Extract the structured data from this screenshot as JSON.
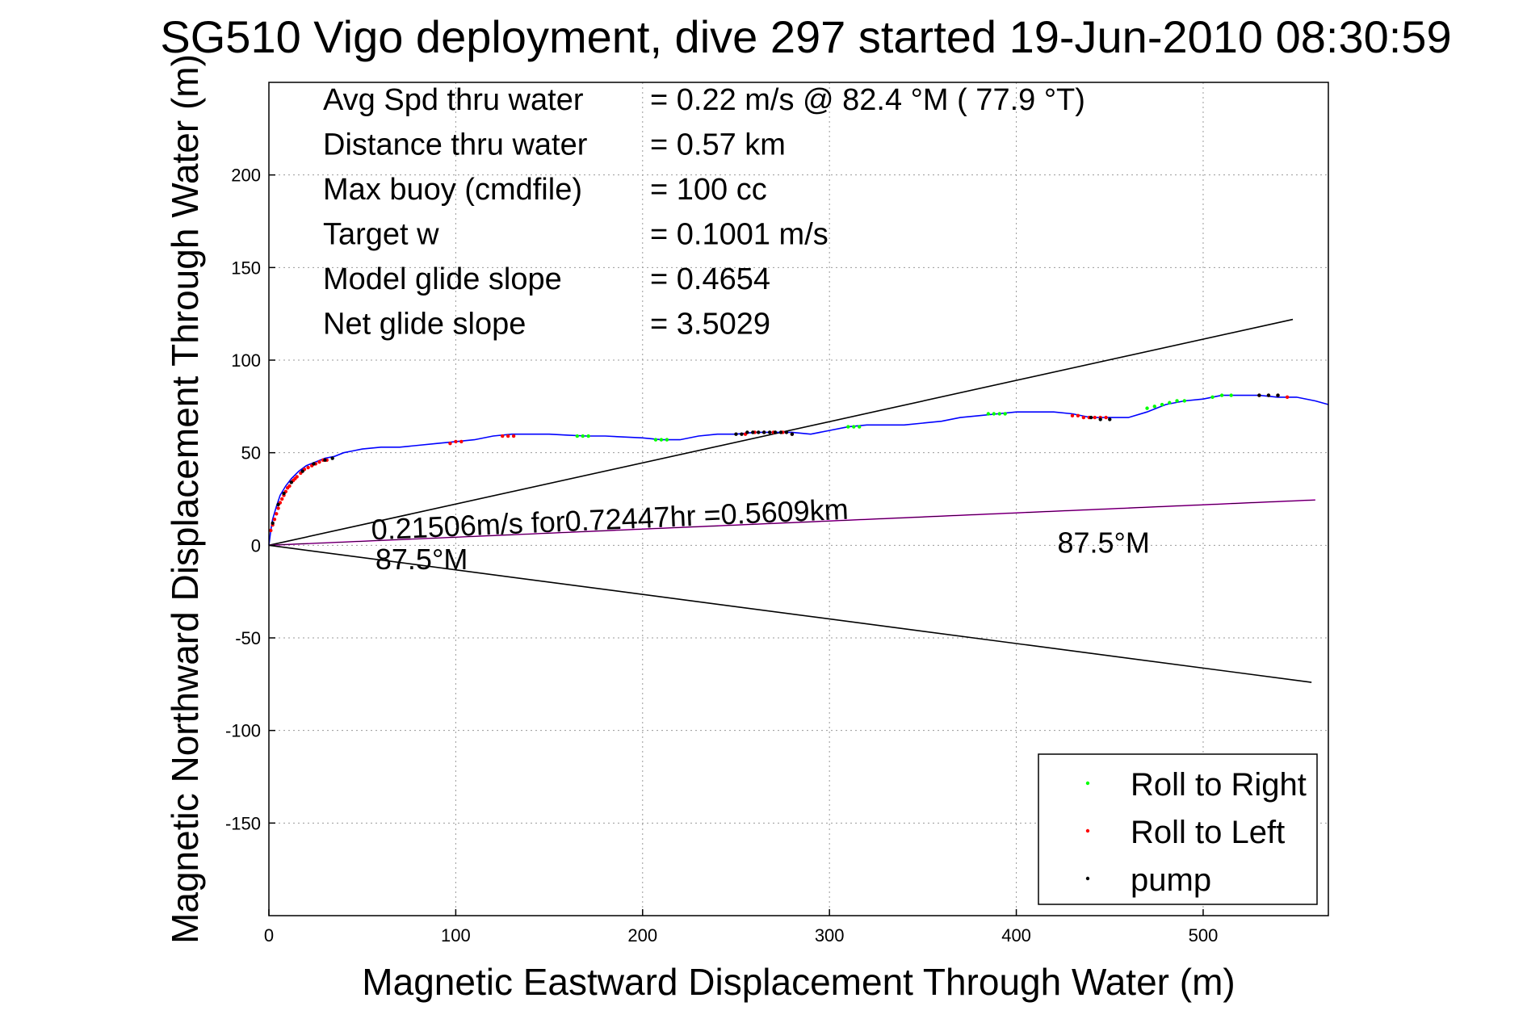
{
  "chart_data": {
    "type": "line",
    "title": "SG510 Vigo deployment, dive 297 started 19-Jun-2010 08:30:59",
    "xlabel": "Magnetic Eastward Displacement Through Water (m)",
    "ylabel": "Magnetic Northward Displacement Through Water (m)",
    "xlim": [
      0,
      567
    ],
    "ylim": [
      -200,
      250
    ],
    "xticks": [
      0,
      100,
      200,
      300,
      400,
      500
    ],
    "yticks": [
      -150,
      -100,
      -50,
      0,
      50,
      100,
      150,
      200
    ],
    "grid": true,
    "legend_position": "bottom-right",
    "info_lines": [
      {
        "label": "Avg Spd thru water",
        "value": "=  0.22 m/s @  82.4 °M ( 77.9 °T)"
      },
      {
        "label": "Distance thru water",
        "value": "=  0.57 km"
      },
      {
        "label": "Max buoy (cmdfile)",
        "value": "= 100 cc"
      },
      {
        "label": "Target w",
        "value": "= 0.1001 m/s"
      },
      {
        "label": "Model glide slope",
        "value": "= 0.4654"
      },
      {
        "label": "Net glide slope",
        "value": "= 3.5029"
      }
    ],
    "annotations": [
      {
        "text": "0.21506m/s for0.72447hr =0.5609km",
        "x": 55,
        "y": 3
      },
      {
        "text": "87.5°M",
        "x": 57,
        "y": -13
      },
      {
        "text": "87.5°M",
        "x": 422,
        "y": -4
      }
    ],
    "series": [
      {
        "name": "track",
        "style": "line",
        "color": "#0000ff",
        "x": [
          0,
          1,
          2,
          4,
          6,
          9,
          12,
          16,
          20,
          25,
          30,
          35,
          40,
          45,
          50,
          55,
          60,
          70,
          80,
          90,
          100,
          110,
          120,
          130,
          140,
          150,
          160,
          170,
          180,
          190,
          200,
          210,
          220,
          230,
          240,
          250,
          260,
          270,
          280,
          290,
          300,
          310,
          320,
          330,
          340,
          350,
          360,
          370,
          380,
          390,
          400,
          410,
          420,
          430,
          440,
          450,
          460,
          470,
          480,
          490,
          500,
          510,
          520,
          530,
          540,
          550,
          560,
          567
        ],
        "y": [
          0,
          8,
          14,
          21,
          27,
          32,
          36,
          40,
          43,
          45,
          47,
          48,
          50,
          51,
          52,
          52.5,
          53,
          53,
          54,
          55,
          56,
          57,
          59,
          60,
          60,
          60,
          59.5,
          59,
          59,
          58.5,
          58,
          57,
          57,
          59,
          60,
          60,
          61,
          61,
          61,
          60,
          62,
          64,
          65,
          65,
          65,
          66,
          67,
          69,
          70,
          71,
          72,
          72,
          72,
          71,
          69,
          69,
          69,
          72,
          76,
          78,
          79,
          81,
          81,
          81,
          80,
          80,
          78,
          76
        ]
      },
      {
        "name": "Roll to Right",
        "style": "points",
        "color": "#00ff00",
        "x": [
          165,
          168,
          171,
          207,
          210,
          213,
          310,
          313,
          316,
          385,
          388,
          391,
          394,
          470,
          474,
          478,
          482,
          486,
          490,
          505,
          510,
          515
        ],
        "y": [
          59,
          59,
          59,
          57,
          57,
          57,
          64,
          64,
          64,
          71,
          71,
          71,
          71,
          74,
          75,
          76,
          77,
          78,
          78,
          80,
          81,
          81
        ]
      },
      {
        "name": "Roll to Left",
        "style": "points",
        "color": "#ff0000",
        "x": [
          1,
          2,
          3,
          4,
          5,
          6,
          7,
          8,
          9,
          10,
          11,
          12,
          13,
          14,
          15,
          17,
          19,
          21,
          23,
          25,
          27,
          29,
          31,
          97,
          100,
          103,
          125,
          128,
          131,
          255,
          260,
          265,
          270,
          275,
          280,
          430,
          433,
          436,
          439,
          442,
          445,
          448,
          530,
          535,
          540,
          545
        ],
        "y": [
          8,
          11,
          14,
          17,
          20,
          23,
          25,
          27,
          29,
          31,
          32,
          34,
          35,
          36,
          37,
          39,
          41,
          42,
          43,
          44,
          45,
          46,
          46,
          55,
          56,
          56,
          59,
          59,
          59,
          60,
          61,
          61,
          61,
          61,
          60,
          70,
          70,
          69,
          69,
          69,
          69,
          69,
          81,
          81,
          81,
          80
        ]
      },
      {
        "name": "pump",
        "style": "points",
        "color": "#000000",
        "x": [
          2,
          5,
          8,
          12,
          18,
          24,
          30,
          34,
          250,
          253,
          256,
          259,
          262,
          265,
          268,
          271,
          274,
          277,
          280,
          440,
          445,
          450,
          530,
          535,
          540
        ],
        "y": [
          12,
          22,
          28,
          34,
          40,
          44,
          46,
          47,
          60,
          60,
          61,
          61,
          61,
          61,
          61,
          61,
          61,
          61,
          60,
          69,
          68,
          68,
          81,
          81,
          81
        ]
      }
    ],
    "reference_lines": [
      {
        "name": "upper bound",
        "color": "#000000",
        "x": [
          0,
          548
        ],
        "y": [
          0,
          122
        ]
      },
      {
        "name": "lower bound",
        "color": "#000000",
        "x": [
          0,
          558
        ],
        "y": [
          0,
          -74
        ]
      },
      {
        "name": "current vector",
        "color": "#ff00ff",
        "x": [
          0,
          560
        ],
        "y": [
          0,
          24.5
        ]
      },
      {
        "name": "through-water vector",
        "color": "#000000",
        "x": [
          0,
          560
        ],
        "y": [
          0,
          24.5
        ]
      }
    ],
    "legend": [
      "Roll to Right",
      "Roll to Left",
      "pump"
    ]
  }
}
